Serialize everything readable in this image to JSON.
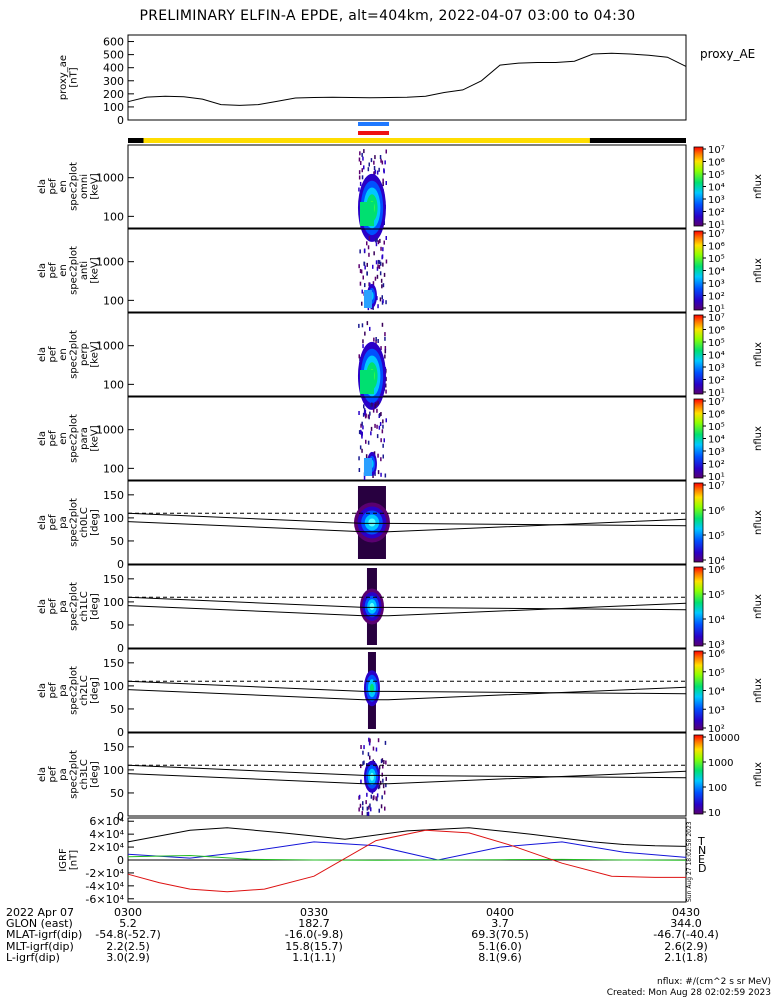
{
  "title": "PRELIMINARY ELFIN-A EPDE, alt=404km, 2022-04-07 03:00 to 04:30",
  "colors": {
    "bar_black": "#000000",
    "bar_yellow": "#ffdd00",
    "bar_blue": "#1e78ff",
    "bar_red": "#ee1111",
    "trace_t": "#000000",
    "trace_n": "#1414d8",
    "trace_e": "#22bb22",
    "trace_d": "#dd1111"
  },
  "panels": [
    {
      "label": "proxy_ae [nT]",
      "right_label": "proxy_AE"
    },
    {
      "label": "ela pef en spec2plot omni [keV]"
    },
    {
      "label": "ela pef en spec2plot anti [keV]"
    },
    {
      "label": "ela pef en spec2plot perp [keV]"
    },
    {
      "label": "ela pef en spec2plot para [keV]"
    },
    {
      "label": "ela pef pa spec2plot ch0LC [deg]"
    },
    {
      "label": "ela pef pa spec2plot ch1LC [deg]"
    },
    {
      "label": "ela pef pa spec2plot ch2LC [deg]"
    },
    {
      "label": "ela pef pa spec2plot ch3LC [deg]"
    },
    {
      "label": "IGRF [nT]"
    }
  ],
  "colorbar_unit": "nflux",
  "colorbars": [
    {
      "ticks": [
        "10¹",
        "10²",
        "10³",
        "10⁴",
        "10⁵",
        "10⁶",
        "10⁷"
      ]
    },
    {
      "ticks": [
        "10¹",
        "10²",
        "10³",
        "10⁴",
        "10⁵",
        "10⁶",
        "10⁷"
      ]
    },
    {
      "ticks": [
        "10¹",
        "10²",
        "10³",
        "10⁴",
        "10⁵",
        "10⁶",
        "10⁷"
      ]
    },
    {
      "ticks": [
        "10¹",
        "10²",
        "10³",
        "10⁴",
        "10⁵",
        "10⁶",
        "10⁷"
      ]
    },
    {
      "ticks": [
        "10⁴",
        "10⁵",
        "10⁶",
        "10⁷"
      ]
    },
    {
      "ticks": [
        "10³",
        "10⁴",
        "10⁵",
        "10⁶"
      ]
    },
    {
      "ticks": [
        "10²",
        "10³",
        "10⁴",
        "10⁵",
        "10⁶"
      ]
    },
    {
      "ticks": [
        "10",
        "100",
        "1000",
        "10000"
      ]
    }
  ],
  "igrf_legend": [
    "T",
    "N",
    "E",
    "D"
  ],
  "sideways_stamp": "Sun Aug 27 18:02:58 2023",
  "x_axis": {
    "row_labels": [
      "2022 Apr 07",
      "GLON (east)",
      "MLAT-igrf(dip)",
      "MLT-igrf(dip)",
      "L-igrf(dip)"
    ],
    "columns": [
      {
        "t": "0300",
        "values": [
          "5.2",
          "-54.8(-52.7)",
          "2.2(2.5)",
          "3.0(2.9)"
        ]
      },
      {
        "t": "0330",
        "values": [
          "182.7",
          "-16.0(-9.8)",
          "15.8(15.7)",
          "1.1(1.1)"
        ]
      },
      {
        "t": "0400",
        "values": [
          "3.7",
          "69.3(70.5)",
          "5.1(6.0)",
          "8.1(9.6)"
        ]
      },
      {
        "t": "0430",
        "values": [
          "344.0",
          "-46.7(-40.4)",
          "2.6(2.9)",
          "2.1(1.8)"
        ]
      }
    ]
  },
  "footer": {
    "units": "nflux: #/(cm^2 s sr MeV)",
    "created": "Created: Mon Aug 28 02:02:59 2023"
  },
  "chart_data": [
    {
      "type": "line",
      "title": "proxy_AE",
      "ylabel": "proxy_ae [nT]",
      "yticks": [
        0,
        100,
        200,
        300,
        400,
        500,
        600
      ],
      "ylim": [
        0,
        650
      ],
      "xlim": [
        0,
        90
      ],
      "series": [
        {
          "name": "proxy_AE",
          "x": [
            0,
            3,
            6,
            9,
            12,
            15,
            18,
            21,
            24,
            27,
            30,
            33,
            36,
            39,
            42,
            45,
            48,
            51,
            54,
            57,
            60,
            63,
            66,
            69,
            72,
            75,
            78,
            81,
            84,
            87,
            90
          ],
          "y": [
            140,
            175,
            182,
            178,
            160,
            118,
            112,
            118,
            142,
            168,
            172,
            174,
            172,
            170,
            172,
            174,
            182,
            210,
            230,
            300,
            420,
            435,
            440,
            440,
            450,
            505,
            510,
            505,
            495,
            480,
            410
          ]
        }
      ]
    },
    {
      "type": "heatmap",
      "name": "omni",
      "ylabel": "ela pef en spec2plot omni [keV]",
      "yscale": "log",
      "yticks": [
        100,
        1000
      ],
      "ylim": [
        50,
        7000
      ],
      "x_window_min": [
        37.1,
        41.6
      ],
      "peak_energy_keV": 300,
      "colorbar_range": [
        10,
        10000000
      ]
    },
    {
      "type": "heatmap",
      "name": "anti",
      "ylabel": "ela pef en spec2plot anti [keV]",
      "yscale": "log",
      "yticks": [
        100,
        1000
      ],
      "ylim": [
        50,
        7000
      ],
      "x_window_min": [
        37.1,
        41.6
      ],
      "peak_energy_keV": 300,
      "colorbar_range": [
        10,
        10000000
      ]
    },
    {
      "type": "heatmap",
      "name": "perp",
      "ylabel": "ela pef en spec2plot perp [keV]",
      "yscale": "log",
      "yticks": [
        100,
        1000
      ],
      "ylim": [
        50,
        7000
      ],
      "x_window_min": [
        37.1,
        41.6
      ],
      "peak_energy_keV": 300,
      "colorbar_range": [
        10,
        10000000
      ]
    },
    {
      "type": "heatmap",
      "name": "para",
      "ylabel": "ela pef en spec2plot para [keV]",
      "yscale": "log",
      "yticks": [
        100,
        1000
      ],
      "ylim": [
        50,
        7000
      ],
      "x_window_min": [
        37.1,
        41.6
      ],
      "peak_energy_keV": 300,
      "colorbar_range": [
        10,
        10000000
      ]
    },
    {
      "type": "heatmap",
      "name": "ch0LC",
      "ylabel": "ela pef pa spec2plot ch0LC [deg]",
      "yticks": [
        0,
        50,
        100,
        150
      ],
      "ylim": [
        0,
        180
      ],
      "x_window_min": [
        37.1,
        41.6
      ],
      "loss_cone_line_deg": [
        [
          0,
          110
        ],
        [
          38,
          88
        ],
        [
          42,
          88
        ],
        [
          90,
          83
        ]
      ],
      "anti_loss_cone_line_deg": [
        [
          0,
          92
        ],
        [
          38,
          70
        ],
        [
          42,
          70
        ],
        [
          90,
          97
        ]
      ],
      "reference_line_deg": 110,
      "colorbar_range": [
        10000,
        10000000
      ]
    },
    {
      "type": "heatmap",
      "name": "ch1LC",
      "ylabel": "ela pef pa spec2plot ch1LC [deg]",
      "yticks": [
        0,
        50,
        100,
        150
      ],
      "ylim": [
        0,
        180
      ],
      "x_window_min": [
        37.1,
        41.6
      ],
      "loss_cone_line_deg": [
        [
          0,
          110
        ],
        [
          38,
          88
        ],
        [
          42,
          88
        ],
        [
          90,
          83
        ]
      ],
      "anti_loss_cone_line_deg": [
        [
          0,
          92
        ],
        [
          38,
          70
        ],
        [
          42,
          70
        ],
        [
          90,
          97
        ]
      ],
      "reference_line_deg": 110,
      "colorbar_range": [
        1000,
        1000000
      ]
    },
    {
      "type": "heatmap",
      "name": "ch2LC",
      "ylabel": "ela pef pa spec2plot ch2LC [deg]",
      "yticks": [
        0,
        50,
        100,
        150
      ],
      "ylim": [
        0,
        180
      ],
      "x_window_min": [
        37.1,
        41.6
      ],
      "loss_cone_line_deg": [
        [
          0,
          110
        ],
        [
          38,
          88
        ],
        [
          42,
          88
        ],
        [
          90,
          83
        ]
      ],
      "anti_loss_cone_line_deg": [
        [
          0,
          92
        ],
        [
          38,
          70
        ],
        [
          42,
          70
        ],
        [
          90,
          97
        ]
      ],
      "reference_line_deg": 110,
      "colorbar_range": [
        100,
        1000000
      ]
    },
    {
      "type": "heatmap",
      "name": "ch3LC",
      "ylabel": "ela pef pa spec2plot ch3LC [deg]",
      "yticks": [
        0,
        50,
        100,
        150
      ],
      "ylim": [
        0,
        180
      ],
      "x_window_min": [
        37.1,
        41.6
      ],
      "loss_cone_line_deg": [
        [
          0,
          110
        ],
        [
          38,
          88
        ],
        [
          42,
          88
        ],
        [
          90,
          83
        ]
      ],
      "anti_loss_cone_line_deg": [
        [
          0,
          92
        ],
        [
          38,
          70
        ],
        [
          42,
          70
        ],
        [
          90,
          97
        ]
      ],
      "reference_line_deg": 110,
      "colorbar_range": [
        10,
        10000
      ]
    },
    {
      "type": "line",
      "title": "IGRF",
      "ylabel": "IGRF [nT]",
      "yticks": [
        "6×10⁴",
        "4×10⁴",
        "2×10⁴",
        "0",
        "-2×10⁴",
        "-4×10⁴",
        "-6×10⁴"
      ],
      "ylim": [
        -65000,
        65000
      ],
      "xlim": [
        0,
        90
      ],
      "series": [
        {
          "name": "T",
          "x": [
            0,
            10,
            16,
            25,
            35,
            45,
            55,
            65,
            75,
            80,
            85,
            90
          ],
          "y": [
            28000,
            46000,
            50000,
            42000,
            32000,
            45000,
            50000,
            40000,
            28000,
            24000,
            22000,
            21000
          ]
        },
        {
          "name": "N",
          "x": [
            0,
            10,
            20,
            30,
            40,
            50,
            60,
            70,
            80,
            90
          ],
          "y": [
            9000,
            3000,
            14000,
            28000,
            22000,
            0,
            20000,
            28000,
            12000,
            4000
          ]
        },
        {
          "name": "E",
          "x": [
            0,
            10,
            20,
            30,
            40,
            50,
            60,
            70,
            80,
            90
          ],
          "y": [
            5000,
            7000,
            1000,
            0,
            -500,
            0,
            500,
            1000,
            0,
            -500
          ]
        },
        {
          "name": "D",
          "x": [
            0,
            5,
            10,
            16,
            22,
            30,
            40,
            48,
            55,
            62,
            70,
            78,
            85,
            90
          ],
          "y": [
            -22000,
            -35000,
            -45000,
            -49000,
            -45000,
            -25000,
            30000,
            46000,
            42000,
            22000,
            -5000,
            -25000,
            -27000,
            -27000
          ]
        }
      ]
    }
  ],
  "orbit_bar": {
    "yellow_span_min": [
      2.5,
      74.5
    ],
    "science_zone_min": [
      37.1,
      42.1
    ]
  }
}
